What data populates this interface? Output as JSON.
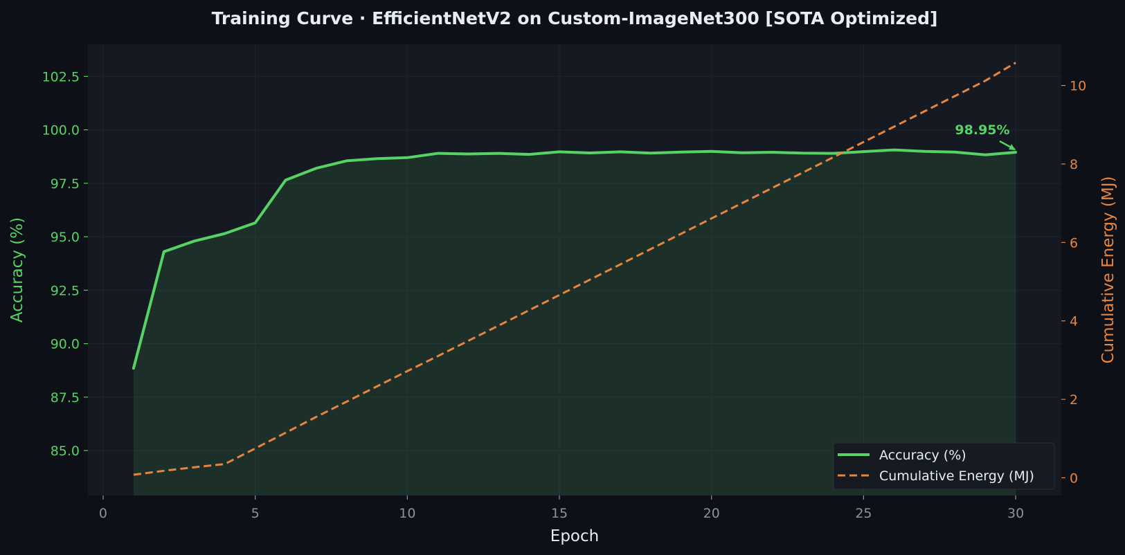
{
  "chart_data": {
    "type": "line",
    "title": "Training Curve  ·  EfficientNetV2 on Custom-ImageNet300  [SOTA Optimized]",
    "xlabel": "Epoch",
    "ylabel": "Accuracy (%)",
    "y2label": "Cumulative Energy (MJ)",
    "xlim": [
      -0.5,
      31.5
    ],
    "ylim": [
      82.9,
      104.0
    ],
    "y2lim": [
      -0.45,
      11.05
    ],
    "xticks": [
      0,
      5,
      10,
      15,
      20,
      25,
      30
    ],
    "yticks": [
      85.0,
      87.5,
      90.0,
      92.5,
      95.0,
      97.5,
      100.0,
      102.5
    ],
    "ytick_labels": [
      "85.0",
      "87.5",
      "90.0",
      "92.5",
      "95.0",
      "97.5",
      "100.0",
      "102.5"
    ],
    "y2ticks": [
      0,
      2,
      4,
      6,
      8,
      10
    ],
    "grid": true,
    "legend_position": "lower-right",
    "x": [
      1,
      2,
      3,
      4,
      5,
      6,
      7,
      8,
      9,
      10,
      11,
      12,
      13,
      14,
      15,
      16,
      17,
      18,
      19,
      20,
      21,
      22,
      23,
      24,
      25,
      26,
      27,
      28,
      29,
      30
    ],
    "series": [
      {
        "name": "Accuracy (%)",
        "axis": "left",
        "style": "solid",
        "color": "#56d364",
        "fill": true,
        "values": [
          88.85,
          94.3,
          94.8,
          95.15,
          95.65,
          97.65,
          98.2,
          98.55,
          98.65,
          98.7,
          98.9,
          98.87,
          98.9,
          98.85,
          98.97,
          98.92,
          98.97,
          98.91,
          98.96,
          98.99,
          98.93,
          98.95,
          98.91,
          98.9,
          98.98,
          99.06,
          98.99,
          98.96,
          98.83,
          98.95
        ]
      },
      {
        "name": "Cumulative Energy (MJ)",
        "axis": "right",
        "style": "dashed",
        "color": "#e8853d",
        "values": [
          0.08,
          0.18,
          0.27,
          0.35,
          0.75,
          1.15,
          1.55,
          1.94,
          2.33,
          2.72,
          3.1,
          3.49,
          3.88,
          4.27,
          4.66,
          5.05,
          5.44,
          5.83,
          6.22,
          6.61,
          7.0,
          7.39,
          7.78,
          8.17,
          8.56,
          8.95,
          9.34,
          9.73,
          10.12,
          10.58
        ]
      }
    ],
    "annotations": [
      {
        "text": "98.95%",
        "x": 30,
        "y": 98.95,
        "color": "#56d364"
      }
    ]
  },
  "colors": {
    "background": "#0d1017",
    "plot_background": "#151922",
    "grid": "#1f242d",
    "accuracy": "#56d364",
    "energy": "#e8853d",
    "title": "#e6edf3",
    "xtick": "#8b949e",
    "legend_bg": "#161b22",
    "legend_text": "#e6edf3"
  }
}
